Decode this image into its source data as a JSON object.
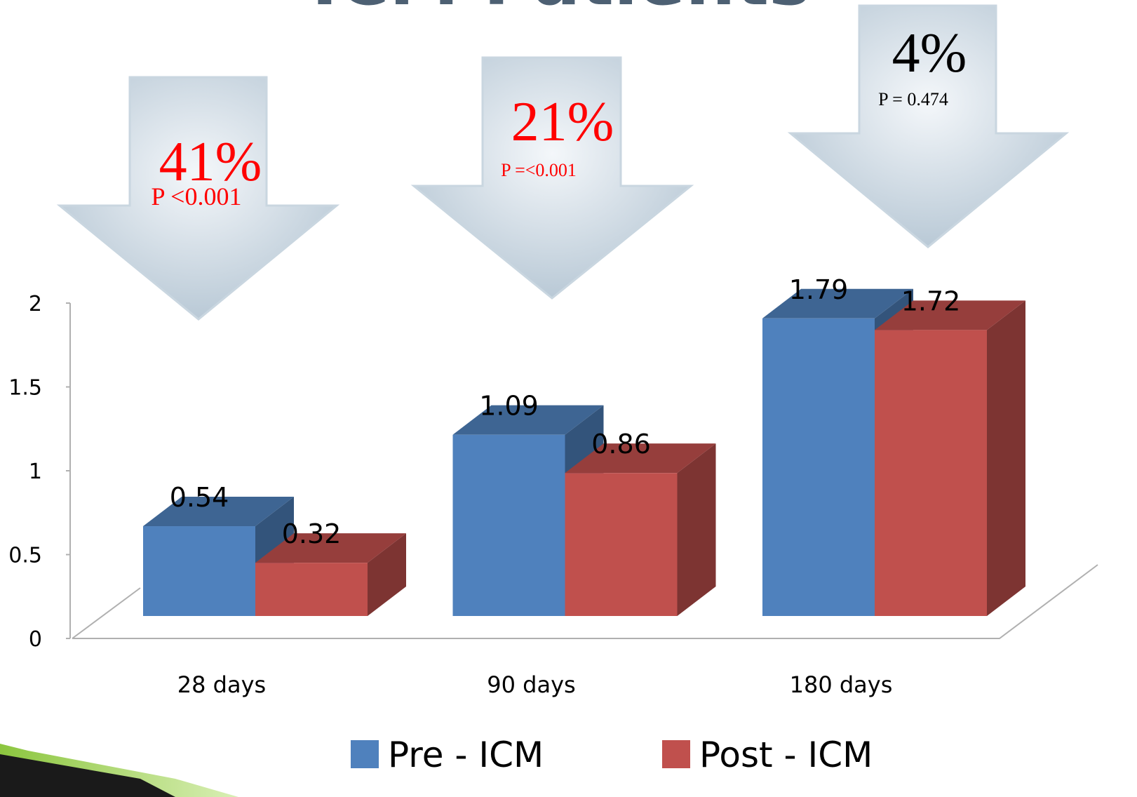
{
  "chart_data": {
    "type": "bar3d",
    "title": "ICM Patients",
    "categories": [
      "28 days",
      "90 days",
      "180 days"
    ],
    "series": [
      {
        "name": "Pre - ICM",
        "color": "#4f81bd",
        "values": [
          0.54,
          1.09,
          1.79
        ]
      },
      {
        "name": "Post - ICM",
        "color": "#c0504d",
        "values": [
          0.32,
          0.86,
          1.72
        ]
      }
    ],
    "ylim": [
      0,
      2
    ],
    "yticks": [
      0,
      0.5,
      1,
      1.5,
      2
    ],
    "annotations": [
      {
        "text": "41%",
        "color": "#ff0000"
      },
      {
        "text": "P <0.001",
        "color": "#ff0000"
      },
      {
        "text": "21%",
        "color": "#ff0000"
      },
      {
        "text": "P =<0.001",
        "color": "#ff0000"
      },
      {
        "text": "4%",
        "color": "#000000"
      },
      {
        "text": "P = 0.474",
        "color": "#000000"
      }
    ]
  }
}
